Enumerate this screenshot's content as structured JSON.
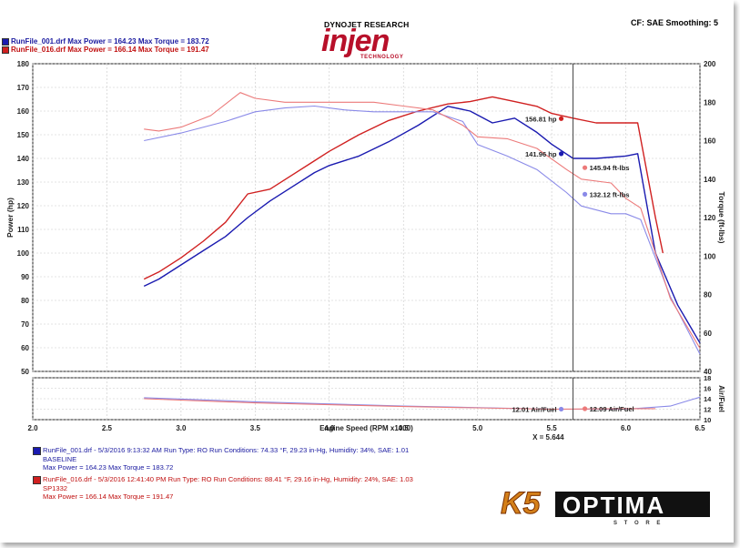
{
  "header": {
    "dyno_brand": "DYNOJET RESEARCH",
    "logo_word": "injen",
    "logo_sub": "TECHNOLOGY",
    "settings": "CF: SAE  Smoothing: 5",
    "run1_line": "RunFile_001.drf Max Power = 164.23     Max Torque = 183.72",
    "run2_line": "RunFile_016.drf Max Power = 166.14     Max Torque = 191.47"
  },
  "legend": {
    "run1": {
      "line1": "RunFile_001.drf - 5/3/2016 9:13:32 AM  Run Type: RO  Run Conditions: 74.33 °F, 29.23 in-Hg,  Humidity:  34%, SAE: 1.01",
      "line2": "BASELINE",
      "line3": "Max Power = 164.23   Max Torque = 183.72",
      "color": "#1a1ab0"
    },
    "run2": {
      "line1": "RunFile_016.drf - 5/3/2016 12:41:40 PM  Run Type: RO  Run Conditions: 88.41 °F, 29.16 in-Hg,  Humidity:  24%, SAE: 1.03",
      "line2": "SP1332",
      "line3": "Max Power = 166.14   Max Torque = 191.47",
      "color": "#d02020"
    }
  },
  "brand_logo": {
    "text": "OPTIMA",
    "sub": "S T O R E",
    "prefix": "K5"
  },
  "chart_data": {
    "type": "line",
    "xlabel": "Engine Speed (RPM x1000)",
    "ylabel_left": "Power (hp)",
    "ylabel_right": "Torque (ft-lbs)",
    "ylabel_afr": "Air/Fuel",
    "xlim": [
      2.0,
      6.5
    ],
    "x_ticks": [
      "2.0",
      "2.5",
      "3.0",
      "3.5",
      "4.0",
      "4.5",
      "5.0",
      "5.5",
      "6.0",
      "6.5"
    ],
    "ylim_power": [
      50,
      180
    ],
    "power_ticks": [
      "50",
      "60",
      "70",
      "80",
      "90",
      "100",
      "110",
      "120",
      "130",
      "140",
      "150",
      "160",
      "170",
      "180"
    ],
    "ylim_torque": [
      40,
      200
    ],
    "torque_ticks": [
      "40",
      "60",
      "80",
      "100",
      "120",
      "140",
      "160",
      "180",
      "200"
    ],
    "ylim_afr": [
      10,
      18
    ],
    "afr_ticks": [
      "10",
      "12",
      "14",
      "16",
      "18"
    ],
    "cursor_x": 5.644,
    "cursor_label": "X = 5.644",
    "grid": true,
    "colors": {
      "run1_power": "#1a1ab0",
      "run1_torque": "#8a8ae8",
      "run2_power": "#d02020",
      "run2_torque": "#ec7a7a"
    },
    "series": [
      {
        "name": "RunFile_001.drf",
        "kind": "power",
        "color": "#1a1ab0",
        "x": [
          2.75,
          2.85,
          3.0,
          3.15,
          3.3,
          3.45,
          3.6,
          3.75,
          3.9,
          4.0,
          4.2,
          4.4,
          4.6,
          4.8,
          4.95,
          5.1,
          5.25,
          5.4,
          5.5,
          5.644,
          5.8,
          6.0,
          6.08,
          6.2,
          6.35,
          6.5
        ],
        "y": [
          86,
          89,
          95,
          101,
          107,
          115,
          122,
          128,
          134,
          137,
          141,
          147,
          154,
          162,
          160,
          155,
          157,
          151,
          146,
          140,
          140,
          141,
          142,
          100,
          78,
          62
        ]
      },
      {
        "name": "RunFile_016.drf",
        "kind": "power",
        "color": "#d02020",
        "x": [
          2.75,
          2.85,
          3.0,
          3.15,
          3.3,
          3.45,
          3.6,
          3.75,
          3.9,
          4.0,
          4.2,
          4.4,
          4.6,
          4.8,
          4.95,
          5.1,
          5.25,
          5.4,
          5.5,
          5.644,
          5.8,
          6.0,
          6.08,
          6.2,
          6.25
        ],
        "y": [
          89,
          92,
          98,
          105,
          113,
          125,
          127,
          133,
          139,
          143,
          150,
          156,
          160,
          163,
          164,
          166,
          164,
          162,
          159,
          157,
          155,
          155,
          155,
          115,
          100
        ]
      },
      {
        "name": "RunFile_001.drf",
        "kind": "torque",
        "color": "#8a8ae8",
        "x": [
          2.75,
          3.0,
          3.3,
          3.5,
          3.7,
          3.9,
          4.1,
          4.3,
          4.5,
          4.7,
          4.9,
          5.0,
          5.2,
          5.4,
          5.6,
          5.7,
          5.9,
          6.0,
          6.1,
          6.3,
          6.5
        ],
        "y": [
          160,
          164,
          170,
          175,
          177,
          178,
          176,
          175,
          175,
          175,
          170,
          158,
          152,
          145,
          133,
          126,
          122,
          122,
          119,
          79,
          49
        ]
      },
      {
        "name": "RunFile_016.drf",
        "kind": "torque",
        "color": "#ec7a7a",
        "x": [
          2.75,
          2.85,
          3.0,
          3.2,
          3.4,
          3.5,
          3.7,
          3.9,
          4.1,
          4.3,
          4.5,
          4.7,
          4.9,
          5.0,
          5.2,
          5.4,
          5.6,
          5.7,
          5.9,
          6.0,
          6.1,
          6.3,
          6.5
        ],
        "y": [
          166,
          165,
          167,
          173,
          185,
          182,
          180,
          180,
          180,
          180,
          178,
          176,
          168,
          162,
          161,
          156,
          145,
          140,
          138,
          130,
          125,
          78,
          52
        ]
      },
      {
        "name": "RunFile_001.drf",
        "kind": "afr",
        "color": "#8a8ae8",
        "x": [
          2.75,
          3.5,
          4.5,
          5.5,
          6.0,
          6.3,
          6.5
        ],
        "y": [
          14.2,
          13.4,
          12.6,
          12.0,
          12.0,
          12.6,
          14.3
        ]
      },
      {
        "name": "RunFile_016.drf",
        "kind": "afr",
        "color": "#ec7a7a",
        "x": [
          2.75,
          3.5,
          4.5,
          5.5,
          6.0,
          6.2
        ],
        "y": [
          14.0,
          13.2,
          12.5,
          12.0,
          12.1,
          12.1
        ]
      }
    ],
    "cursor_readouts": [
      {
        "label": "156.81 hp",
        "series": "RunFile_016.drf",
        "kind": "power",
        "value": 156.81,
        "color": "#d02020"
      },
      {
        "label": "141.96 hp",
        "series": "RunFile_001.drf",
        "kind": "power",
        "value": 141.96,
        "color": "#1a1ab0"
      },
      {
        "label": "145.94 ft-lbs",
        "series": "RunFile_016.drf",
        "kind": "torque",
        "value": 145.94,
        "color": "#ec7a7a"
      },
      {
        "label": "132.12 ft-lbs",
        "series": "RunFile_001.drf",
        "kind": "torque",
        "value": 132.12,
        "color": "#8a8ae8"
      },
      {
        "label": "12.01 Air/Fuel",
        "series": "RunFile_001.drf",
        "kind": "afr",
        "value": 12.01,
        "color": "#8a8ae8"
      },
      {
        "label": "12.09 Air/Fuel",
        "series": "RunFile_016.drf",
        "kind": "afr",
        "value": 12.09,
        "color": "#ec7a7a"
      }
    ]
  }
}
